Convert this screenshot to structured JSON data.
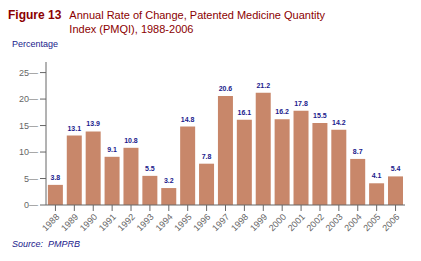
{
  "chart_data": {
    "type": "bar",
    "title": "Figure 13",
    "subtitle": "Annual Rate of Change, Patented Medicine Quantity\nIndex (PMQI), 1988-2006",
    "y_label": "Percentage",
    "annotations": [
      "Source:  PMPRB"
    ],
    "categories": [
      "1988",
      "1989",
      "1990",
      "1991",
      "1992",
      "1993",
      "1994",
      "1995",
      "1996",
      "1997",
      "1998",
      "1999",
      "2000",
      "2001",
      "2002",
      "2003",
      "2004",
      "2005",
      "2006"
    ],
    "values": [
      3.8,
      13.1,
      13.9,
      9.1,
      10.8,
      5.5,
      3.2,
      14.8,
      7.8,
      20.6,
      16.1,
      21.2,
      16.2,
      17.8,
      15.5,
      14.2,
      8.7,
      4.1,
      5.4
    ],
    "color": "#C8876A",
    "ylim": [
      0,
      27
    ],
    "yticks": [
      {
        "value": 0,
        "label": "0—"
      },
      {
        "value": 5,
        "label": "5—"
      },
      {
        "value": 10,
        "label": "10—"
      },
      {
        "value": 15,
        "label": "15—"
      },
      {
        "value": 20,
        "label": "20—"
      },
      {
        "value": 25,
        "label": "25—"
      }
    ],
    "grid": false,
    "data_labels": true
  }
}
